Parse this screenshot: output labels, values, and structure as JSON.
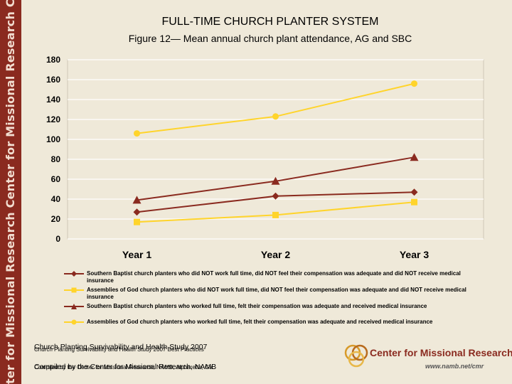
{
  "sidebar": {
    "text": "ter for Missional Research Center for Missional Research Center for Missional Re"
  },
  "header": {
    "title": "FULL-TIME CHURCH PLANTER SYSTEM",
    "subtitle": "Figure 12— Mean annual church plant attendance, AG and SBC"
  },
  "colors": {
    "plot_bg": "#efe9d9",
    "grid": "#ffffff",
    "series_dark": "#8a2a1f",
    "series_light": "#ffd42b",
    "band": "#8a2a1f"
  },
  "chart_data": {
    "type": "line",
    "title": "",
    "xlabel": "",
    "ylabel": "",
    "categories": [
      "Year 1",
      "Year 2",
      "Year 3"
    ],
    "ylim": [
      0,
      180
    ],
    "yticks": [
      "0",
      "20",
      "40",
      "60",
      "80",
      "100",
      "120",
      "140",
      "160",
      "180"
    ],
    "grid": true,
    "legend_position": "bottom",
    "series": [
      {
        "name": "Southern Baptist church planters who did NOT work full time, did NOT feel their compensation was adequate and did NOT receive medical insurance",
        "values": [
          27,
          43,
          47
        ],
        "color": "#8a2a1f",
        "marker": "diamond"
      },
      {
        "name": "Assemblies of God church planters who did NOT work full time, did NOT feel their compensation was adequate and did NOT receive medical insurance",
        "values": [
          17,
          24,
          37
        ],
        "color": "#ffd42b",
        "marker": "square"
      },
      {
        "name": "Southern Baptist church planters who worked full time, felt their compensation was adequate and received medical insurance",
        "values": [
          39,
          58,
          82
        ],
        "color": "#8a2a1f",
        "marker": "triangle"
      },
      {
        "name": "Assemblies of God church planters who worked full time, felt their compensation was adequate and received medical insurance",
        "values": [
          106,
          123,
          156
        ],
        "color": "#ffd42b",
        "marker": "circle"
      }
    ]
  },
  "footer": {
    "source_a": "Church Planting Survivability and Health Study 2007",
    "source_b": "Church Planting Survivability and Health Study 2007 Best Practices",
    "compiled_a": "Compiled by the Center for Missional Research, NAMB",
    "compiled_b": "Compiled by the Center for Missional Research, NAMB, Alpharetta, Ga.",
    "logo_text": "Center for Missional Research",
    "logo_url": "www.namb.net/cmr"
  }
}
